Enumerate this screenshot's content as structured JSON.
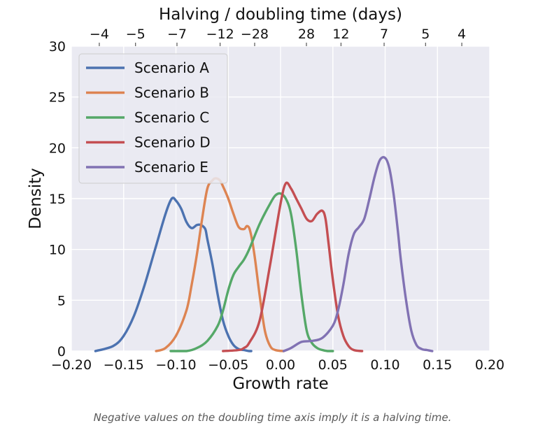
{
  "chart_data": {
    "type": "line",
    "title": "",
    "xlabel": "Growth rate",
    "ylabel": "Density",
    "top_axis_label": "Halving / doubling time (days)",
    "xlim": [
      -0.2,
      0.2
    ],
    "ylim": [
      0,
      30
    ],
    "grid": true,
    "legend_position": "upper-left",
    "x_ticks": [
      "−0.20",
      "−0.15",
      "−0.10",
      "−0.05",
      "0.00",
      "0.05",
      "0.10",
      "0.15",
      "0.20"
    ],
    "y_ticks": [
      "0",
      "5",
      "10",
      "15",
      "20",
      "25",
      "30"
    ],
    "top_ticks": [
      "−4",
      "−5",
      "−7",
      "−12",
      "−28",
      "28",
      "12",
      "7",
      "5",
      "4"
    ],
    "series": [
      {
        "name": "Scenario A",
        "color": "#4c72b0",
        "x": [
          -0.177,
          -0.16,
          -0.15,
          -0.14,
          -0.13,
          -0.12,
          -0.11,
          -0.104,
          -0.1,
          -0.095,
          -0.09,
          -0.085,
          -0.08,
          -0.076,
          -0.072,
          -0.07,
          -0.065,
          -0.06,
          -0.055,
          -0.05,
          -0.045,
          -0.04,
          -0.035,
          -0.03,
          -0.028
        ],
        "y": [
          0,
          0.5,
          1.5,
          3.5,
          6.5,
          10,
          13.5,
          15,
          14.8,
          14,
          12.7,
          12.1,
          12.4,
          12.4,
          12,
          11,
          8.5,
          5.5,
          3,
          1.5,
          0.6,
          0.2,
          0.1,
          0,
          0
        ]
      },
      {
        "name": "Scenario B",
        "color": "#dd8452",
        "x": [
          -0.119,
          -0.11,
          -0.1,
          -0.09,
          -0.085,
          -0.08,
          -0.075,
          -0.07,
          -0.065,
          -0.062,
          -0.058,
          -0.055,
          -0.05,
          -0.045,
          -0.04,
          -0.035,
          -0.032,
          -0.029,
          -0.025,
          -0.02,
          -0.015,
          -0.01,
          -0.005,
          0.003
        ],
        "y": [
          0,
          0.3,
          1.5,
          4,
          6.5,
          9.5,
          13,
          16,
          16.8,
          17,
          16.8,
          16.2,
          15,
          13.5,
          12.2,
          12,
          12.3,
          11.8,
          9.5,
          5.5,
          2,
          0.5,
          0.1,
          0
        ]
      },
      {
        "name": "Scenario C",
        "color": "#55a868",
        "x": [
          -0.105,
          -0.09,
          -0.08,
          -0.07,
          -0.06,
          -0.055,
          -0.05,
          -0.045,
          -0.04,
          -0.035,
          -0.03,
          -0.02,
          -0.01,
          -0.005,
          0,
          0.005,
          0.01,
          0.015,
          0.02,
          0.025,
          0.03,
          0.035,
          0.04,
          0.045,
          0.05
        ],
        "y": [
          0,
          0,
          0.3,
          1,
          2.5,
          4,
          6,
          7.5,
          8.3,
          9,
          10,
          12.5,
          14.5,
          15.3,
          15.5,
          15,
          13.5,
          10,
          5.5,
          2,
          0.8,
          0.3,
          0.1,
          0,
          0
        ]
      },
      {
        "name": "Scenario D",
        "color": "#c44e52",
        "x": [
          -0.055,
          -0.04,
          -0.035,
          -0.03,
          -0.02,
          -0.01,
          0,
          0.005,
          0.01,
          0.015,
          0.02,
          0.025,
          0.03,
          0.035,
          0.04,
          0.043,
          0.046,
          0.05,
          0.055,
          0.06,
          0.065,
          0.07,
          0.078
        ],
        "y": [
          0,
          0.1,
          0.3,
          0.8,
          3,
          8.5,
          14.5,
          16.5,
          16,
          15,
          14,
          13,
          12.8,
          13.5,
          13.8,
          13,
          10.5,
          7,
          3.5,
          1.5,
          0.5,
          0.1,
          0
        ]
      },
      {
        "name": "Scenario E",
        "color": "#8172b3",
        "x": [
          0.003,
          0.01,
          0.02,
          0.03,
          0.04,
          0.05,
          0.055,
          0.06,
          0.065,
          0.07,
          0.075,
          0.08,
          0.085,
          0.09,
          0.095,
          0.1,
          0.104,
          0.108,
          0.112,
          0.115,
          0.12,
          0.125,
          0.13,
          0.135,
          0.14,
          0.145
        ],
        "y": [
          0,
          0.3,
          0.9,
          1,
          1.3,
          2.5,
          4,
          6.5,
          9.5,
          11.5,
          12.2,
          13,
          15,
          17.2,
          18.8,
          19,
          18,
          15.5,
          12,
          9,
          5,
          2,
          0.6,
          0.2,
          0.1,
          0
        ]
      }
    ]
  },
  "caption": "Negative values on the doubling time axis imply it is a halving time."
}
